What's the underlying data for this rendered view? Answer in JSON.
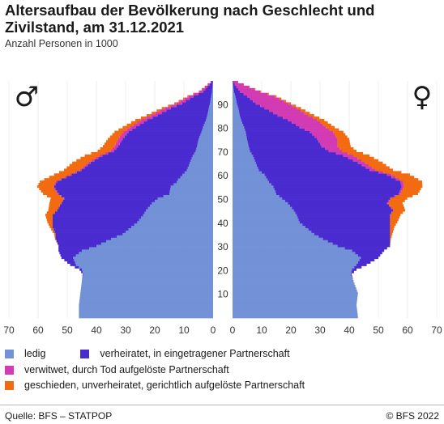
{
  "title": "Altersaufbau der Bevölkerung nach Geschlecht und Zivilstand, am 31.12.2021",
  "subtitle": "Anzahl Personen in 1000",
  "source": "Quelle: BFS – STATPOP",
  "copyright": "© BFS 2022",
  "colors": {
    "ledig": "#7291d6",
    "verheiratet": "#4a2bd0",
    "verwitwet": "#d23bb4",
    "geschieden": "#f36b10"
  },
  "chart_data": {
    "type": "bar",
    "orientation": "horizontal-pyramid",
    "age_ticks": [
      "10",
      "20",
      "30",
      "40",
      "50",
      "60",
      "70",
      "80",
      "90"
    ],
    "x_ticks_left": [
      "70",
      "60",
      "50",
      "40",
      "30",
      "20",
      "10",
      "0"
    ],
    "x_ticks_right": [
      "0",
      "10",
      "20",
      "30",
      "40",
      "50",
      "60",
      "70"
    ],
    "xlim": [
      0,
      70
    ],
    "ylim": [
      0,
      100
    ],
    "age_anchors": [
      0,
      5,
      10,
      15,
      18,
      20,
      22,
      25,
      28,
      30,
      33,
      35,
      38,
      40,
      43,
      45,
      48,
      50,
      52,
      55,
      57,
      58,
      60,
      62,
      65,
      68,
      70,
      72,
      75,
      78,
      80,
      83,
      85,
      88,
      90,
      93,
      95,
      98,
      100
    ],
    "male": {
      "symbol": "♂",
      "ledig": [
        46,
        46,
        45.5,
        45,
        44.5,
        45,
        47,
        48,
        45,
        40,
        35,
        31,
        28,
        26,
        24,
        23,
        21,
        19,
        15,
        14.5,
        12.5,
        12,
        10.5,
        9,
        8,
        7,
        6,
        5.5,
        5,
        4,
        3.5,
        2.5,
        2,
        1.5,
        1.1,
        0.7,
        0.4,
        0.2,
        0
      ],
      "verheiratet": [
        0,
        0,
        0,
        0,
        0.2,
        0.8,
        2,
        4,
        8,
        13,
        19,
        23,
        27,
        29,
        31,
        30.5,
        31,
        32,
        38,
        40,
        41,
        40,
        38,
        36,
        34,
        31,
        28,
        27,
        26,
        25,
        23,
        20,
        17,
        13,
        9.5,
        6,
        3,
        1,
        0
      ],
      "verwitwet": [
        0,
        0,
        0,
        0,
        0,
        0,
        0,
        0,
        0,
        0,
        0,
        0,
        0,
        0,
        0,
        0,
        0.1,
        0.2,
        0.3,
        0.3,
        0.4,
        0.4,
        0.5,
        0.6,
        0.8,
        1,
        1.1,
        1.3,
        1.6,
        1.8,
        2,
        2.2,
        2.3,
        2.1,
        2,
        1.7,
        1.3,
        0.6,
        0
      ],
      "geschieden": [
        0,
        0,
        0,
        0,
        0,
        0,
        0,
        0,
        0,
        0,
        0.2,
        0.5,
        1,
        1.8,
        2.5,
        3,
        4,
        4.5,
        5,
        5.5,
        5.5,
        5.5,
        5.5,
        5.5,
        5.5,
        5,
        4.5,
        4,
        3.5,
        3,
        2.5,
        2,
        1.5,
        1,
        0.7,
        0.4,
        0.2,
        0.1,
        0
      ]
    },
    "female": {
      "symbol": "♀",
      "ledig": [
        43,
        42.5,
        43,
        41.5,
        40.5,
        41,
        42.5,
        44,
        41,
        36,
        31,
        28,
        25,
        23,
        22,
        21,
        19,
        17,
        15,
        14,
        12.5,
        12,
        11,
        9,
        8,
        7,
        6,
        5.5,
        5,
        4.5,
        4,
        3,
        2.5,
        2,
        1.5,
        1,
        0.5,
        0.2,
        0
      ],
      "verheiratet": [
        0,
        0,
        0,
        0,
        0.3,
        1.5,
        3.5,
        6,
        11,
        18,
        23,
        26,
        29,
        31,
        32,
        34,
        34,
        37,
        42,
        44,
        45,
        44,
        42,
        38,
        35,
        31,
        27,
        25,
        24,
        22,
        19,
        16,
        13,
        9,
        6.5,
        4,
        2,
        0.6,
        0
      ],
      "verwitwet": [
        0,
        0,
        0,
        0,
        0,
        0,
        0,
        0,
        0,
        0,
        0,
        0,
        0,
        0,
        0.1,
        0.2,
        0.3,
        0.4,
        0.6,
        0.8,
        1,
        1.2,
        1.5,
        2,
        2.5,
        3.5,
        4.5,
        5.5,
        7,
        8,
        9,
        10,
        10.5,
        11,
        11,
        9.5,
        7,
        3,
        0
      ],
      "geschieden": [
        0,
        0,
        0,
        0,
        0,
        0,
        0,
        0,
        0,
        0,
        0.3,
        0.8,
        1.5,
        2.5,
        3.5,
        4,
        5,
        5.5,
        6,
        6.3,
        6.5,
        6.5,
        6.3,
        6,
        6,
        5.5,
        5,
        4.5,
        4,
        3.5,
        3,
        2.5,
        2,
        1.5,
        1,
        0.6,
        0.3,
        0.1,
        0
      ]
    }
  },
  "legend": [
    {
      "label": "ledig",
      "color": "#7291d6"
    },
    {
      "label": "verheiratet, in eingetragener Partnerschaft",
      "color": "#4a2bd0"
    },
    {
      "label": "verwitwet, durch Tod aufgelöste Partnerschaft",
      "color": "#d23bb4"
    },
    {
      "label": "geschieden, unverheiratet, gerichtlich aufgelöste Partnerschaft",
      "color": "#f36b10"
    }
  ]
}
